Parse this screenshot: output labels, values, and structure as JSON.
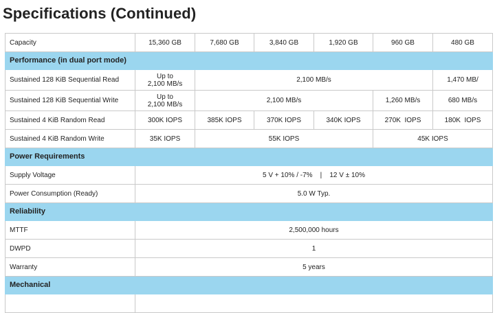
{
  "page_title": "Specifications (Continued)",
  "capacity": {
    "label": "Capacity",
    "values": [
      "15,360 GB",
      "7,680 GB",
      "3,840 GB",
      "1,920 GB",
      "960 GB",
      "480 GB"
    ]
  },
  "sections": {
    "performance": "Performance (in dual port mode)",
    "power": "Power Requirements",
    "reliability": "Reliability",
    "mechanical": "Mechanical"
  },
  "seq_read": {
    "label": "Sustained 128 KiB Sequential Read",
    "c1": "Up to\n2,100 MB/s",
    "c2_5": "2,100 MB/s",
    "c6": "1,470 MB/"
  },
  "seq_write": {
    "label": "Sustained 128 KiB Sequential Write",
    "c1": "Up to\n2,100 MB/s",
    "c2_4": "2,100 MB/s",
    "c5": "1,260 MB/s",
    "c6": "680 MB/s"
  },
  "rand_read": {
    "label": "Sustained 4 KiB Random Read",
    "values": [
      "300K IOPS",
      "385K IOPS",
      "370K IOPS",
      "340K IOPS",
      "270K  IOPS",
      "180K  IOPS"
    ]
  },
  "rand_write": {
    "label": "Sustained 4 KiB Random Write",
    "c1": "35K IOPS",
    "c2_4": "55K IOPS",
    "c5_6": "45K IOPS"
  },
  "supply_voltage": {
    "label": "Supply Voltage",
    "value": "5 V + 10% / -7%    |    12 V ± 10%"
  },
  "power_consumption": {
    "label": "Power Consumption (Ready)",
    "value": "5.0 W Typ."
  },
  "mttf": {
    "label": "MTTF",
    "value": "2,500,000 hours"
  },
  "dwpd": {
    "label": "DWPD",
    "value": "1"
  },
  "warranty": {
    "label": "Warranty",
    "value": "5 years"
  }
}
